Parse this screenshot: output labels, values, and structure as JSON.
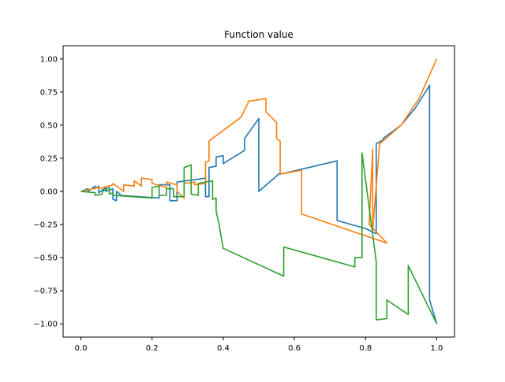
{
  "chart_data": {
    "type": "line",
    "title": "Function value",
    "xlabel": "",
    "ylabel": "",
    "xlim": [
      -0.05,
      1.05
    ],
    "ylim": [
      -1.1,
      1.1
    ],
    "xticks": [
      0.0,
      0.2,
      0.4,
      0.6,
      0.8,
      1.0
    ],
    "xtick_labels": [
      "0.0",
      "0.2",
      "0.4",
      "0.6",
      "0.8",
      "1.0"
    ],
    "yticks": [
      -1.0,
      -0.75,
      -0.5,
      -0.25,
      0.0,
      0.25,
      0.5,
      0.75,
      1.0
    ],
    "ytick_labels": [
      "−1.00",
      "−0.75",
      "−0.50",
      "−0.25",
      "0.00",
      "0.25",
      "0.50",
      "0.75",
      "1.00"
    ],
    "grid": false,
    "legend": "none",
    "colors": [
      "#1f77b4",
      "#ff7f0e",
      "#2ca02c"
    ],
    "series": [
      {
        "x": [
          0,
          0.02,
          0.02,
          0.04,
          0.04,
          0.05,
          0.05,
          0.07,
          0.07,
          0.09,
          0.09,
          0.1,
          0.1,
          0.11,
          0.11,
          0.22,
          0.22,
          0.25,
          0.25,
          0.27,
          0.27,
          0.35,
          0.35,
          0.36,
          0.36,
          0.38,
          0.38,
          0.4,
          0.4,
          0.46,
          0.46,
          0.5,
          0.5,
          0.56,
          0.56,
          0.72,
          0.72,
          0.8,
          0.8,
          0.83,
          0.83,
          0.85,
          0.85,
          0.9,
          0.94,
          0.98,
          0.98,
          1.0
        ],
        "y": [
          0,
          0.02,
          0.0,
          0.04,
          0.02,
          0.04,
          -0.01,
          0.03,
          0.0,
          0.02,
          -0.06,
          -0.07,
          0.0,
          -0.02,
          -0.03,
          -0.05,
          0.05,
          0.05,
          -0.07,
          -0.07,
          0.07,
          0.1,
          -0.04,
          -0.04,
          0.18,
          0.19,
          0.26,
          0.27,
          0.21,
          0.31,
          0.4,
          0.55,
          0.0,
          0.14,
          0.13,
          0.23,
          -0.22,
          -0.28,
          -0.28,
          -0.32,
          0.36,
          0.39,
          0.4,
          0.5,
          0.63,
          0.8,
          -0.82,
          -1.0
        ]
      },
      {
        "x": [
          0,
          0.05,
          0.05,
          0.09,
          0.09,
          0.12,
          0.12,
          0.15,
          0.15,
          0.17,
          0.17,
          0.2,
          0.2,
          0.24,
          0.24,
          0.27,
          0.27,
          0.29,
          0.29,
          0.32,
          0.32,
          0.35,
          0.35,
          0.36,
          0.36,
          0.36,
          0.37,
          0.45,
          0.47,
          0.47,
          0.52,
          0.52,
          0.55,
          0.55,
          0.56,
          0.56,
          0.62,
          0.62,
          0.86,
          0.86,
          0.81,
          0.82,
          0.82,
          0.84,
          0.84,
          0.9,
          0.95,
          1.0
        ],
        "y": [
          0,
          0.03,
          0.02,
          0.05,
          0.06,
          0.0,
          0.05,
          0.04,
          0.08,
          0.04,
          0.1,
          0.09,
          0.06,
          0.03,
          0.07,
          0.05,
          0.0,
          -0.05,
          0.06,
          0.07,
          0.05,
          0.06,
          0.22,
          0.23,
          0.38,
          0.38,
          0.4,
          0.56,
          0.67,
          0.68,
          0.7,
          0.6,
          0.52,
          0.4,
          0.38,
          0.13,
          0.16,
          -0.17,
          -0.39,
          -0.39,
          -0.25,
          0.32,
          -0.29,
          0.37,
          0.36,
          0.5,
          0.7,
          1.0
        ]
      },
      {
        "x": [
          0,
          0.04,
          0.04,
          0.06,
          0.06,
          0.08,
          0.08,
          0.09,
          0.09,
          0.2,
          0.2,
          0.22,
          0.22,
          0.24,
          0.24,
          0.26,
          0.26,
          0.29,
          0.29,
          0.31,
          0.31,
          0.33,
          0.33,
          0.37,
          0.37,
          0.38,
          0.38,
          0.39,
          0.39,
          0.4,
          0.57,
          0.57,
          0.77,
          0.77,
          0.79,
          0.79,
          0.83,
          0.83,
          0.86,
          0.86,
          0.92,
          0.92,
          1.0
        ],
        "y": [
          0,
          -0.01,
          -0.03,
          -0.02,
          0.0,
          0.03,
          -0.02,
          -0.01,
          -0.03,
          -0.05,
          0.03,
          0.04,
          -0.03,
          -0.03,
          0.02,
          0.02,
          -0.04,
          -0.04,
          0.18,
          0.2,
          -0.02,
          -0.03,
          0.06,
          0.08,
          -0.06,
          -0.05,
          -0.15,
          -0.27,
          -0.28,
          -0.43,
          -0.64,
          -0.42,
          -0.57,
          -0.5,
          -0.5,
          0.29,
          -0.53,
          -0.97,
          -0.96,
          -0.82,
          -0.93,
          -0.56,
          -1.0
        ]
      }
    ]
  }
}
